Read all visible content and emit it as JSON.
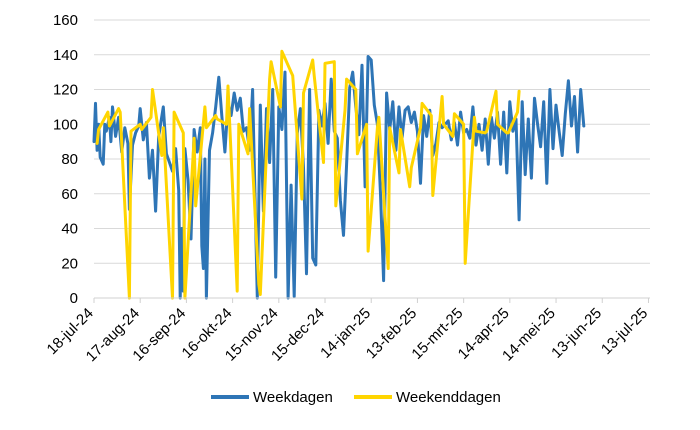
{
  "chart_data": {
    "type": "line",
    "title": "",
    "xlabel": "",
    "ylabel": "",
    "ylim": [
      0,
      160
    ],
    "yticks": [
      0,
      20,
      40,
      60,
      80,
      100,
      120,
      140,
      160
    ],
    "gridlines": "horizontal",
    "legend_position": "bottom",
    "x_start": "2024-07-18",
    "x_end": "2025-07-14",
    "xtick_labels": [
      {
        "date": "2024-07-18",
        "label": "18-jul-24"
      },
      {
        "date": "2024-08-17",
        "label": "17-aug-24"
      },
      {
        "date": "2024-09-16",
        "label": "16-sep-24"
      },
      {
        "date": "2024-10-16",
        "label": "16-okt-24"
      },
      {
        "date": "2024-11-15",
        "label": "15-nov-24"
      },
      {
        "date": "2024-12-15",
        "label": "15-dec-24"
      },
      {
        "date": "2025-01-14",
        "label": "14-jan-25"
      },
      {
        "date": "2025-02-13",
        "label": "13-feb-25"
      },
      {
        "date": "2025-03-15",
        "label": "15-mrt-25"
      },
      {
        "date": "2025-04-14",
        "label": "14-apr-25"
      },
      {
        "date": "2025-05-14",
        "label": "14-mei-25"
      },
      {
        "date": "2025-06-13",
        "label": "13-jun-25"
      },
      {
        "date": "2025-07-13",
        "label": "13-jul-25"
      }
    ],
    "series": [
      {
        "name": "Weekdagen",
        "color": "#2e75b6",
        "points": [
          [
            "2024-07-18",
            90
          ],
          [
            "2024-07-19",
            112
          ],
          [
            "2024-07-20",
            85
          ],
          [
            "2024-07-21",
            100
          ],
          [
            "2024-07-22",
            81
          ],
          [
            "2024-07-23",
            79
          ],
          [
            "2024-07-24",
            77
          ],
          [
            "2024-07-25",
            100
          ],
          [
            "2024-07-26",
            96
          ],
          [
            "2024-07-28",
            104
          ],
          [
            "2024-07-29",
            90
          ],
          [
            "2024-07-30",
            110
          ],
          [
            "2024-08-01",
            93
          ],
          [
            "2024-08-03",
            104
          ],
          [
            "2024-08-05",
            84
          ],
          [
            "2024-08-07",
            98
          ],
          [
            "2024-08-09",
            89
          ],
          [
            "2024-08-10",
            51
          ],
          [
            "2024-08-12",
            88
          ],
          [
            "2024-08-14",
            95
          ],
          [
            "2024-08-16",
            99
          ],
          [
            "2024-08-17",
            109
          ],
          [
            "2024-08-19",
            91
          ],
          [
            "2024-08-21",
            101
          ],
          [
            "2024-08-23",
            69
          ],
          [
            "2024-08-25",
            85
          ],
          [
            "2024-08-27",
            50
          ],
          [
            "2024-08-29",
            93
          ],
          [
            "2024-09-01",
            110
          ],
          [
            "2024-09-03",
            83
          ],
          [
            "2024-09-05",
            78
          ],
          [
            "2024-09-07",
            73
          ],
          [
            "2024-09-09",
            86
          ],
          [
            "2024-09-11",
            62
          ],
          [
            "2024-09-12",
            0
          ],
          [
            "2024-09-13",
            40
          ],
          [
            "2024-09-14",
            4
          ],
          [
            "2024-09-15",
            86
          ],
          [
            "2024-09-17",
            68
          ],
          [
            "2024-09-19",
            34
          ],
          [
            "2024-09-21",
            97
          ],
          [
            "2024-09-23",
            84
          ],
          [
            "2024-09-25",
            98
          ],
          [
            "2024-09-26",
            30
          ],
          [
            "2024-09-27",
            17
          ],
          [
            "2024-09-28",
            80
          ],
          [
            "2024-09-29",
            0
          ],
          [
            "2024-10-01",
            85
          ],
          [
            "2024-10-03",
            95
          ],
          [
            "2024-10-05",
            110
          ],
          [
            "2024-10-07",
            127
          ],
          [
            "2024-10-09",
            105
          ],
          [
            "2024-10-11",
            84
          ],
          [
            "2024-10-13",
            112
          ],
          [
            "2024-10-15",
            105
          ],
          [
            "2024-10-17",
            118
          ],
          [
            "2024-10-19",
            108
          ],
          [
            "2024-10-21",
            115
          ],
          [
            "2024-10-23",
            96
          ],
          [
            "2024-10-25",
            98
          ],
          [
            "2024-10-27",
            85
          ],
          [
            "2024-10-29",
            120
          ],
          [
            "2024-11-01",
            0
          ],
          [
            "2024-11-03",
            111
          ],
          [
            "2024-11-05",
            50
          ],
          [
            "2024-11-07",
            109
          ],
          [
            "2024-11-09",
            78
          ],
          [
            "2024-11-11",
            120
          ],
          [
            "2024-11-13",
            12
          ],
          [
            "2024-11-15",
            110
          ],
          [
            "2024-11-17",
            97
          ],
          [
            "2024-11-19",
            130
          ],
          [
            "2024-11-21",
            0
          ],
          [
            "2024-11-23",
            65
          ],
          [
            "2024-11-25",
            1
          ],
          [
            "2024-11-27",
            95
          ],
          [
            "2024-11-29",
            109
          ],
          [
            "2024-12-01",
            75
          ],
          [
            "2024-12-03",
            14
          ],
          [
            "2024-12-05",
            120
          ],
          [
            "2024-12-07",
            23
          ],
          [
            "2024-12-09",
            19
          ],
          [
            "2024-12-11",
            108
          ],
          [
            "2024-12-13",
            99
          ],
          [
            "2024-12-15",
            112
          ],
          [
            "2024-12-17",
            89
          ],
          [
            "2024-12-19",
            126
          ],
          [
            "2024-12-21",
            96
          ],
          [
            "2024-12-23",
            92
          ],
          [
            "2024-12-25",
            56
          ],
          [
            "2024-12-27",
            36
          ],
          [
            "2024-12-29",
            77
          ],
          [
            "2024-12-31",
            121
          ],
          [
            "2025-01-02",
            130
          ],
          [
            "2025-01-04",
            110
          ],
          [
            "2025-01-06",
            94
          ],
          [
            "2025-01-08",
            134
          ],
          [
            "2025-01-10",
            64
          ],
          [
            "2025-01-12",
            139
          ],
          [
            "2025-01-14",
            137
          ],
          [
            "2025-01-16",
            111
          ],
          [
            "2025-01-18",
            100
          ],
          [
            "2025-01-20",
            60
          ],
          [
            "2025-01-22",
            10
          ],
          [
            "2025-01-24",
            118
          ],
          [
            "2025-01-26",
            97
          ],
          [
            "2025-01-28",
            113
          ],
          [
            "2025-01-30",
            85
          ],
          [
            "2025-02-01",
            110
          ],
          [
            "2025-02-03",
            92
          ],
          [
            "2025-02-05",
            108
          ],
          [
            "2025-02-07",
            110
          ],
          [
            "2025-02-09",
            101
          ],
          [
            "2025-02-11",
            107
          ],
          [
            "2025-02-13",
            96
          ],
          [
            "2025-02-15",
            66
          ],
          [
            "2025-02-17",
            105
          ],
          [
            "2025-02-19",
            93
          ],
          [
            "2025-02-21",
            108
          ],
          [
            "2025-02-23",
            82
          ],
          [
            "2025-02-25",
            89
          ],
          [
            "2025-02-27",
            101
          ],
          [
            "2025-03-01",
            98
          ],
          [
            "2025-03-03",
            100
          ],
          [
            "2025-03-05",
            102
          ],
          [
            "2025-03-07",
            91
          ],
          [
            "2025-03-09",
            101
          ],
          [
            "2025-03-11",
            88
          ],
          [
            "2025-03-13",
            107
          ],
          [
            "2025-03-15",
            95
          ],
          [
            "2025-03-17",
            97
          ],
          [
            "2025-03-19",
            92
          ],
          [
            "2025-03-21",
            110
          ],
          [
            "2025-03-23",
            88
          ],
          [
            "2025-03-25",
            100
          ],
          [
            "2025-03-27",
            85
          ],
          [
            "2025-03-29",
            103
          ],
          [
            "2025-03-31",
            77
          ],
          [
            "2025-04-02",
            104
          ],
          [
            "2025-04-04",
            92
          ],
          [
            "2025-04-06",
            107
          ],
          [
            "2025-04-08",
            77
          ],
          [
            "2025-04-10",
            107
          ],
          [
            "2025-04-12",
            72
          ],
          [
            "2025-04-14",
            113
          ],
          [
            "2025-04-16",
            96
          ],
          [
            "2025-04-18",
            103
          ],
          [
            "2025-04-20",
            45
          ],
          [
            "2025-04-22",
            113
          ],
          [
            "2025-04-24",
            71
          ],
          [
            "2025-04-26",
            103
          ],
          [
            "2025-04-28",
            69
          ],
          [
            "2025-04-30",
            115
          ],
          [
            "2025-05-02",
            100
          ],
          [
            "2025-05-04",
            87
          ],
          [
            "2025-05-06",
            113
          ],
          [
            "2025-05-08",
            66
          ],
          [
            "2025-05-10",
            120
          ],
          [
            "2025-05-12",
            86
          ],
          [
            "2025-05-14",
            111
          ],
          [
            "2025-05-16",
            96
          ],
          [
            "2025-05-18",
            82
          ],
          [
            "2025-05-20",
            106
          ],
          [
            "2025-05-22",
            125
          ],
          [
            "2025-05-24",
            99
          ],
          [
            "2025-05-26",
            116
          ],
          [
            "2025-05-28",
            84
          ],
          [
            "2025-05-30",
            120
          ],
          [
            "2025-06-01",
            99
          ]
        ]
      },
      {
        "name": "Weekenddagen",
        "color": "#ffd500",
        "points": [
          [
            "2024-07-20",
            89
          ],
          [
            "2024-07-21",
            97
          ],
          [
            "2024-07-27",
            107
          ],
          [
            "2024-07-28",
            99
          ],
          [
            "2024-08-03",
            109
          ],
          [
            "2024-08-04",
            107
          ],
          [
            "2024-08-10",
            0
          ],
          [
            "2024-08-11",
            96
          ],
          [
            "2024-08-17",
            100
          ],
          [
            "2024-08-18",
            97
          ],
          [
            "2024-08-24",
            104
          ],
          [
            "2024-08-25",
            120
          ],
          [
            "2024-08-31",
            82
          ],
          [
            "2024-09-01",
            98
          ],
          [
            "2024-09-07",
            0
          ],
          [
            "2024-09-08",
            107
          ],
          [
            "2024-09-14",
            95
          ],
          [
            "2024-09-15",
            0
          ],
          [
            "2024-09-21",
            92
          ],
          [
            "2024-09-22",
            53
          ],
          [
            "2024-09-28",
            110
          ],
          [
            "2024-09-29",
            98
          ],
          [
            "2024-10-05",
            105
          ],
          [
            "2024-10-06",
            103
          ],
          [
            "2024-10-12",
            100
          ],
          [
            "2024-10-13",
            122
          ],
          [
            "2024-10-19",
            4
          ],
          [
            "2024-10-20",
            100
          ],
          [
            "2024-10-26",
            83
          ],
          [
            "2024-10-27",
            109
          ],
          [
            "2024-11-02",
            8
          ],
          [
            "2024-11-03",
            2
          ],
          [
            "2024-11-09",
            126
          ],
          [
            "2024-11-10",
            136
          ],
          [
            "2024-11-16",
            110
          ],
          [
            "2024-11-17",
            142
          ],
          [
            "2024-11-23",
            130
          ],
          [
            "2024-11-24",
            128
          ],
          [
            "2024-11-30",
            57
          ],
          [
            "2024-12-01",
            118
          ],
          [
            "2024-12-07",
            137
          ],
          [
            "2024-12-08",
            128
          ],
          [
            "2024-12-14",
            78
          ],
          [
            "2024-12-15",
            135
          ],
          [
            "2024-12-21",
            136
          ],
          [
            "2024-12-22",
            53
          ],
          [
            "2024-12-28",
            108
          ],
          [
            "2024-12-29",
            126
          ],
          [
            "2025-01-04",
            120
          ],
          [
            "2025-01-05",
            83
          ],
          [
            "2025-01-11",
            100
          ],
          [
            "2025-01-12",
            27
          ],
          [
            "2025-01-18",
            98
          ],
          [
            "2025-01-19",
            104
          ],
          [
            "2025-01-25",
            17
          ],
          [
            "2025-01-26",
            98
          ],
          [
            "2025-02-01",
            72
          ],
          [
            "2025-02-02",
            97
          ],
          [
            "2025-02-08",
            64
          ],
          [
            "2025-02-09",
            75
          ],
          [
            "2025-02-15",
            98
          ],
          [
            "2025-02-16",
            112
          ],
          [
            "2025-02-22",
            105
          ],
          [
            "2025-02-23",
            59
          ],
          [
            "2025-03-01",
            116
          ],
          [
            "2025-03-02",
            100
          ],
          [
            "2025-03-08",
            93
          ],
          [
            "2025-03-09",
            106
          ],
          [
            "2025-03-15",
            100
          ],
          [
            "2025-03-16",
            20
          ],
          [
            "2025-03-22",
            104
          ],
          [
            "2025-03-23",
            96
          ],
          [
            "2025-03-29",
            95
          ],
          [
            "2025-03-30",
            96
          ],
          [
            "2025-04-05",
            119
          ],
          [
            "2025-04-06",
            100
          ],
          [
            "2025-04-12",
            95
          ],
          [
            "2025-04-13",
            95
          ],
          [
            "2025-04-19",
            107
          ],
          [
            "2025-04-20",
            119
          ]
        ]
      }
    ]
  }
}
